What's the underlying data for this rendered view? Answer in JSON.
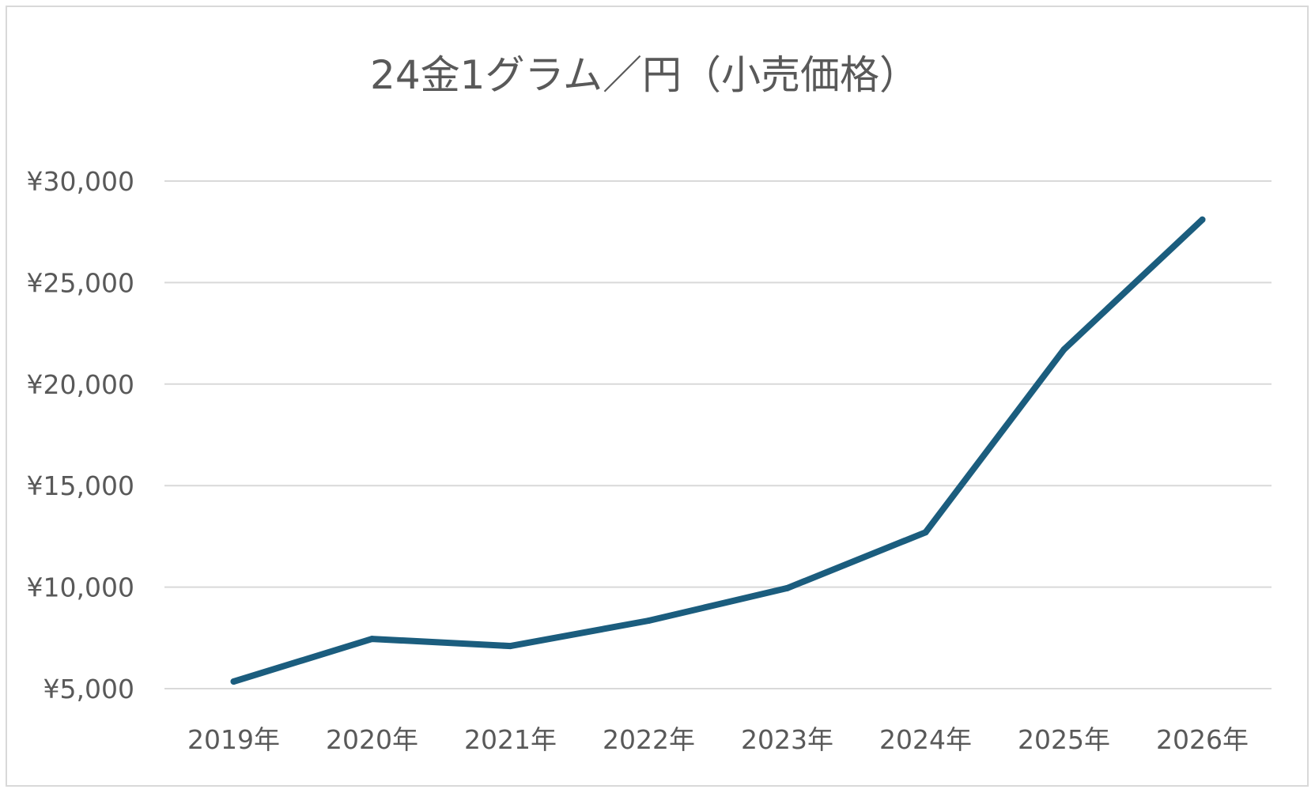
{
  "chart_data": {
    "type": "line",
    "title": "24金1グラム／円（小売価格）",
    "xlabel": "",
    "ylabel": "",
    "categories": [
      "2019年",
      "2020年",
      "2021年",
      "2022年",
      "2023年",
      "2024年",
      "2025年",
      "2026年"
    ],
    "series": [
      {
        "values": [
          5350,
          7450,
          7100,
          8350,
          9950,
          12700,
          21700,
          28100
        ],
        "color": "#1b5d7e"
      }
    ],
    "ylim": [
      5000,
      30000
    ],
    "yticks": [
      5000,
      10000,
      15000,
      20000,
      25000,
      30000
    ],
    "ytick_labels": [
      "¥5,000",
      "¥10,000",
      "¥15,000",
      "¥20,000",
      "¥25,000",
      "¥30,000"
    ],
    "grid": true,
    "legend": "none"
  }
}
